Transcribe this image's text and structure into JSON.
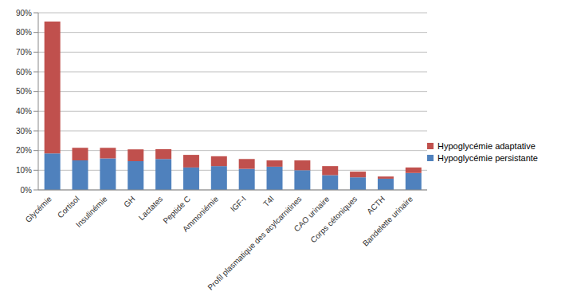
{
  "chart_data": {
    "type": "bar",
    "stacked": true,
    "grid": true,
    "legend": "right",
    "categories": [
      "Glycémie",
      "Cortisol",
      "Insulinémie",
      "GH",
      "Lactates",
      "Peptide C",
      "Ammoniémie",
      "IGF-I",
      "T4l",
      "Profil plasmatique des acylcarnitines",
      "CAO urinaire",
      "Corps cétoniques",
      "ACTH",
      "Bandelette urinaire"
    ],
    "series": [
      {
        "name": "Hypoglycémie persistante",
        "color": "#4f81bd",
        "values": [
          18.5,
          15,
          16,
          14.6,
          15.7,
          11.4,
          12.1,
          10.7,
          11.8,
          10,
          7.5,
          6.4,
          5.7,
          8.6
        ]
      },
      {
        "name": "Hypoglycémie adaptative",
        "color": "#c0504d",
        "values": [
          67,
          6.4,
          5.4,
          6,
          5,
          6.4,
          5,
          5,
          3.2,
          5,
          4.6,
          2.9,
          1.1,
          2.8
        ]
      }
    ],
    "ylim": [
      0,
      90
    ],
    "yticks": [
      {
        "value": 0,
        "label": "0%"
      },
      {
        "value": 10,
        "label": "10%"
      },
      {
        "value": 20,
        "label": "20%"
      },
      {
        "value": 30,
        "label": "30%"
      },
      {
        "value": 40,
        "label": "40%"
      },
      {
        "value": 50,
        "label": "50%"
      },
      {
        "value": 60,
        "label": "60%"
      },
      {
        "value": 70,
        "label": "70%"
      },
      {
        "value": 80,
        "label": "80%"
      },
      {
        "value": 90,
        "label": "90%"
      }
    ]
  }
}
